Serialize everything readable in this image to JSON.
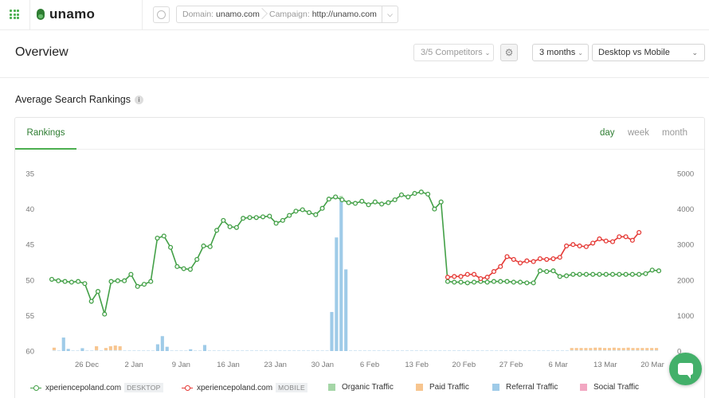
{
  "app": {
    "name": "unamo"
  },
  "context": {
    "domain_label": "Domain:",
    "domain_value": "unamo.com",
    "campaign_label": "Campaign:",
    "campaign_value": "http://unamo.com"
  },
  "page": {
    "title": "Overview",
    "competitors": "3/5 Competitors",
    "range": "3 months",
    "device": "Desktop vs Mobile"
  },
  "section": {
    "title": "Average Search Rankings"
  },
  "tabs": {
    "active": "Rankings",
    "periods": [
      "day",
      "week",
      "month"
    ],
    "active_period": "day"
  },
  "colors": {
    "desktop": "#43a047",
    "mobile": "#e53935",
    "organic": "#a5d6a7",
    "paid": "#f7c58f",
    "referral": "#9fcbe8",
    "social": "#f2a7c2",
    "accent": "#43b06a"
  },
  "icons": [
    "apps-grid-icon",
    "unamo-logo-icon",
    "help-icon",
    "chevron-down-icon",
    "gear-icon",
    "info-icon",
    "chat-icon"
  ],
  "legend": [
    {
      "label": "xperiencepoland.com",
      "tag": "DESKTOP",
      "kind": "line",
      "color": "#43a047"
    },
    {
      "label": "xperiencepoland.com",
      "tag": "MOBILE",
      "kind": "line",
      "color": "#e53935"
    },
    {
      "label": "Organic Traffic",
      "kind": "bar",
      "color": "#a5d6a7"
    },
    {
      "label": "Paid Traffic",
      "kind": "bar",
      "color": "#f7c58f"
    },
    {
      "label": "Referral Traffic",
      "kind": "bar",
      "color": "#9fcbe8"
    },
    {
      "label": "Social Traffic",
      "kind": "bar",
      "color": "#f2a7c2"
    }
  ],
  "chart_data": {
    "type": "line",
    "grid": false,
    "legend_position": "bottom",
    "x_ticks": [
      "26 Dec",
      "2 Jan",
      "9 Jan",
      "16 Jan",
      "23 Jan",
      "30 Jan",
      "6 Feb",
      "13 Feb",
      "20 Feb",
      "27 Feb",
      "6 Mar",
      "13 Mar",
      "20 Mar"
    ],
    "y_left": {
      "ticks": [
        35,
        40,
        45,
        50,
        55,
        60
      ],
      "range": [
        35,
        60
      ],
      "reversed": true
    },
    "y_right": {
      "ticks": [
        5000,
        4000,
        3000,
        2000,
        1000,
        0
      ],
      "range": [
        0,
        5000
      ]
    },
    "desktop": [
      49.9,
      50.1,
      50.2,
      50.3,
      50.2,
      50.5,
      53.0,
      51.6,
      54.8,
      50.2,
      50.1,
      50.1,
      49.2,
      50.9,
      50.6,
      50.2,
      44.1,
      43.8,
      45.4,
      48.1,
      48.4,
      48.5,
      47.1,
      45.2,
      45.3,
      43.0,
      41.6,
      42.5,
      42.6,
      41.3,
      41.2,
      41.2,
      41.1,
      41.0,
      42.0,
      41.6,
      40.9,
      40.3,
      40.1,
      40.5,
      40.8,
      39.9,
      38.6,
      38.3,
      38.7,
      39.1,
      39.2,
      38.9,
      39.4,
      39.0,
      39.3,
      39.1,
      38.7,
      38.0,
      38.3,
      37.8,
      37.6,
      37.9,
      40.0,
      39.0,
      50.2,
      50.3,
      50.3,
      50.4,
      50.3,
      50.2,
      50.3,
      50.2,
      50.2,
      50.2,
      50.3,
      50.3,
      50.4,
      50.4,
      48.7,
      48.8,
      48.7,
      49.5,
      49.4,
      49.2,
      49.2,
      49.2,
      49.2,
      49.2,
      49.2,
      49.2,
      49.2,
      49.2,
      49.2,
      49.2,
      49.1,
      48.6,
      48.7
    ],
    "mobile_start_index": 60,
    "mobile": [
      49.6,
      49.5,
      49.5,
      49.2,
      49.2,
      49.8,
      49.6,
      48.8,
      48.1,
      46.7,
      47.1,
      47.6,
      47.3,
      47.4,
      47.0,
      47.1,
      47.0,
      46.8,
      45.2,
      45.0,
      45.2,
      45.3,
      44.8,
      44.2,
      44.5,
      44.6,
      43.9,
      43.9,
      44.4,
      43.3
    ],
    "referral_traffic": [
      0,
      0,
      380,
      60,
      0,
      0,
      80,
      0,
      0,
      0,
      0,
      0,
      0,
      0,
      0,
      0,
      0,
      0,
      0,
      0,
      0,
      0,
      190,
      420,
      120,
      0,
      0,
      0,
      0,
      50,
      0,
      0,
      170,
      0,
      0,
      0,
      0,
      0,
      0,
      0,
      0,
      0,
      0,
      0,
      0,
      0,
      0,
      0,
      0,
      0,
      0,
      0,
      0,
      0,
      0,
      0,
      0,
      0,
      0,
      1100,
      3200,
      4300,
      2300,
      0,
      0,
      0,
      0,
      0,
      0,
      0,
      0,
      0,
      0,
      0,
      0,
      0,
      0,
      0,
      0,
      0,
      0,
      0,
      0,
      0,
      0,
      0,
      0,
      0,
      0,
      0,
      0,
      0,
      0,
      0,
      0,
      0,
      0,
      0,
      0,
      0,
      0,
      0,
      0,
      0,
      0,
      0,
      0,
      0,
      0,
      0,
      0,
      0,
      0,
      0,
      0,
      0,
      0,
      0,
      0,
      0,
      0,
      0,
      0,
      0,
      0,
      0,
      0,
      0,
      0
    ],
    "paid_traffic": [
      70,
      0,
      0,
      0,
      0,
      0,
      0,
      0,
      0,
      110,
      0,
      60,
      110,
      130,
      110,
      0,
      0,
      0,
      0,
      0,
      0,
      0,
      0,
      0,
      0,
      0,
      0,
      0,
      0,
      0,
      0,
      0,
      0,
      0,
      0,
      0,
      0,
      0,
      0,
      0,
      0,
      0,
      0,
      0,
      0,
      0,
      0,
      0,
      0,
      0,
      0,
      0,
      0,
      0,
      0,
      0,
      0,
      0,
      0,
      0,
      0,
      0,
      0,
      0,
      0,
      0,
      0,
      0,
      0,
      0,
      0,
      0,
      0,
      0,
      0,
      0,
      0,
      0,
      0,
      0,
      0,
      0,
      0,
      0,
      0,
      0,
      0,
      0,
      0,
      0,
      0,
      0,
      0,
      0,
      0,
      0,
      0,
      0,
      0,
      0,
      0,
      0,
      0,
      0,
      0,
      0,
      0,
      0,
      0,
      0,
      60,
      60,
      60,
      60,
      60,
      70,
      70,
      60,
      60,
      70,
      60,
      60,
      70,
      60,
      60,
      60,
      60,
      60,
      60,
      60
    ]
  }
}
